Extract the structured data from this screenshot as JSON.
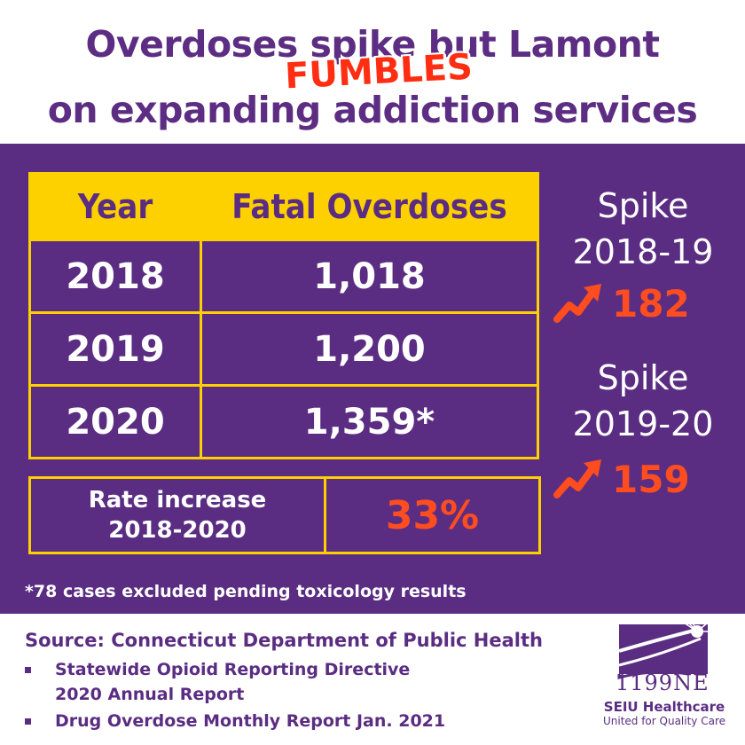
{
  "headline": {
    "line1": "Overdoses spike but Lamont",
    "stamp": "FUMBLES",
    "line2": "on expanding addiction services"
  },
  "table": {
    "headers": [
      "Year",
      "Fatal Overdoses"
    ],
    "rows": [
      {
        "year": "2018",
        "deaths": "1,018"
      },
      {
        "year": "2019",
        "deaths": "1,200"
      },
      {
        "year": "2020",
        "deaths": "1,359*"
      }
    ]
  },
  "rate": {
    "label_line1": "Rate increase",
    "label_line2": "2018-2020",
    "value": "33%"
  },
  "spikes": [
    {
      "line1": "Spike",
      "line2": "2018-19",
      "value": "182"
    },
    {
      "line1": "Spike",
      "line2": "2019-20",
      "value": "159"
    }
  ],
  "footnote": "*78 cases excluded pending toxicology results",
  "source": {
    "title": "Source: Connecticut Department of Public Health",
    "items": [
      {
        "line1": "Statewide Opioid Reporting Directive",
        "line2": "2020 Annual Report"
      },
      {
        "line1": "Drug Overdose Monthly Report Jan. 2021",
        "line2": ""
      }
    ]
  },
  "logo": {
    "number": "1199NE",
    "brand": "SEIU Healthcare",
    "tagline": "United for Quality Care"
  },
  "colors": {
    "purple": "#5a2d82",
    "yellow": "#fdd000",
    "orange_red": "#ff4d1f"
  },
  "chart_data": {
    "type": "table",
    "title": "Overdoses spike but Lamont FUMBLES on expanding addiction services",
    "columns": [
      "Year",
      "Fatal Overdoses"
    ],
    "categories": [
      "2018",
      "2019",
      "2020"
    ],
    "values": [
      1018,
      1200,
      1359
    ],
    "annotations": [
      {
        "label": "Spike 2018-19",
        "value": 182
      },
      {
        "label": "Spike 2019-20",
        "value": 159
      },
      {
        "label": "Rate increase 2018-2020",
        "value": "33%"
      }
    ]
  }
}
